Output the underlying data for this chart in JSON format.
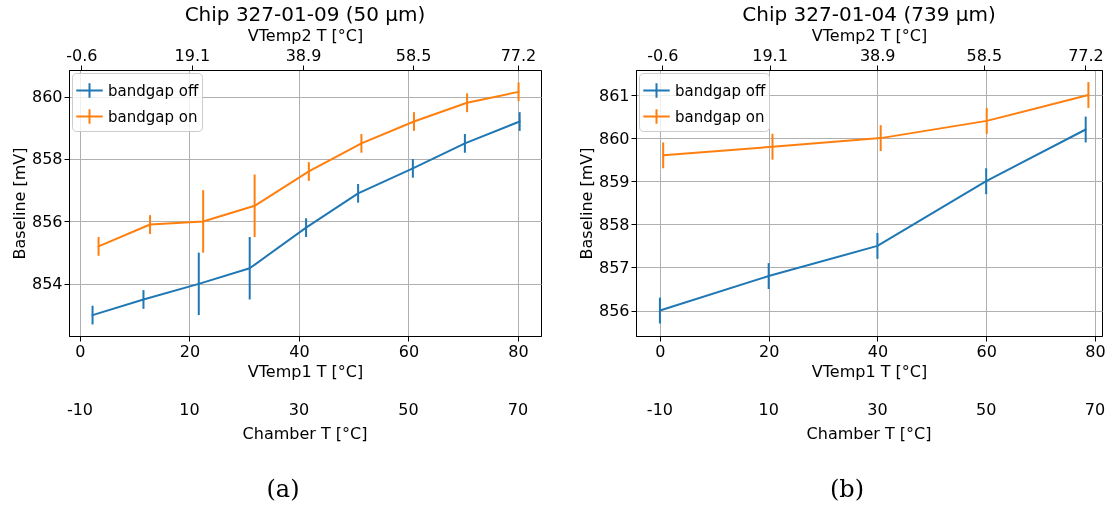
{
  "chart_data": [
    {
      "type": "line",
      "title": "Chip 327-01-09 (50 μm)",
      "xlabel": "VTemp1 T [°C]",
      "ylabel": "Baseline [mV]",
      "x2label": "VTemp2 T [°C]",
      "xlim": [
        -2,
        84.2
      ],
      "xticks": [
        0,
        20,
        40,
        60,
        80
      ],
      "ylim": [
        852.33,
        860.85
      ],
      "yticks": [
        854,
        856,
        858,
        860
      ],
      "x2lim": [
        -2.79,
        81.3
      ],
      "x2ticks": [
        -0.6,
        19.1,
        38.9,
        58.5,
        77.2
      ],
      "grid": true,
      "legend": "top left",
      "annotations": [
        "-10",
        "10",
        "30",
        "50",
        "70",
        "Chamber T [°C]",
        "(a)"
      ],
      "series": [
        {
          "name": "bandgap off",
          "color": "#1f77b4",
          "x": [
            2.3,
            11.6,
            21.7,
            31.0,
            41.3,
            50.8,
            60.8,
            70.3,
            80.3
          ],
          "values": [
            853.0,
            853.5,
            854.0,
            854.5,
            855.8,
            856.9,
            857.7,
            858.5,
            859.2
          ],
          "errors": [
            0.3,
            0.3,
            1.0,
            1.0,
            0.3,
            0.3,
            0.3,
            0.3,
            0.3
          ]
        },
        {
          "name": "bandgap on",
          "color": "#ff7f0e",
          "x": [
            3.4,
            12.8,
            22.5,
            31.9,
            41.8,
            51.4,
            61.0,
            70.7,
            80.1
          ],
          "values": [
            855.2,
            855.9,
            856.0,
            856.5,
            857.6,
            858.5,
            859.2,
            859.8,
            860.15
          ],
          "errors": [
            0.3,
            0.3,
            1.0,
            1.0,
            0.3,
            0.3,
            0.3,
            0.3,
            0.3
          ]
        }
      ]
    },
    {
      "type": "line",
      "title": "Chip 327-01-04 (739 μm)",
      "xlabel": "VTemp1 T [°C]",
      "ylabel": "Baseline [mV]",
      "x2label": "VTemp2 T [°C]",
      "xlim": [
        -4.4,
        81.3
      ],
      "xticks": [
        0,
        20,
        40,
        60,
        80
      ],
      "ylim": [
        855.41,
        861.58
      ],
      "yticks": [
        856,
        857,
        858,
        859,
        860,
        861
      ],
      "x2lim": [
        -5.46,
        80.24
      ],
      "x2ticks": [
        -0.6,
        19.1,
        38.9,
        58.5,
        77.2
      ],
      "grid": true,
      "legend": "top left",
      "annotations": [
        "-10",
        "10",
        "30",
        "50",
        "70",
        "Chamber T [°C]",
        "(b)"
      ],
      "series": [
        {
          "name": "bandgap off",
          "color": "#1f77b4",
          "x": [
            0,
            20,
            40,
            60,
            78.3
          ],
          "values": [
            856.0,
            856.8,
            857.5,
            859.0,
            860.2
          ],
          "errors": [
            0.3,
            0.3,
            0.3,
            0.3,
            0.3
          ]
        },
        {
          "name": "bandgap on",
          "color": "#ff7f0e",
          "x": [
            0.6,
            20.7,
            40.6,
            60.1,
            78.8
          ],
          "values": [
            859.6,
            859.8,
            860.0,
            860.4,
            861.0
          ],
          "errors": [
            0.3,
            0.3,
            0.3,
            0.3,
            0.3
          ]
        }
      ]
    }
  ]
}
